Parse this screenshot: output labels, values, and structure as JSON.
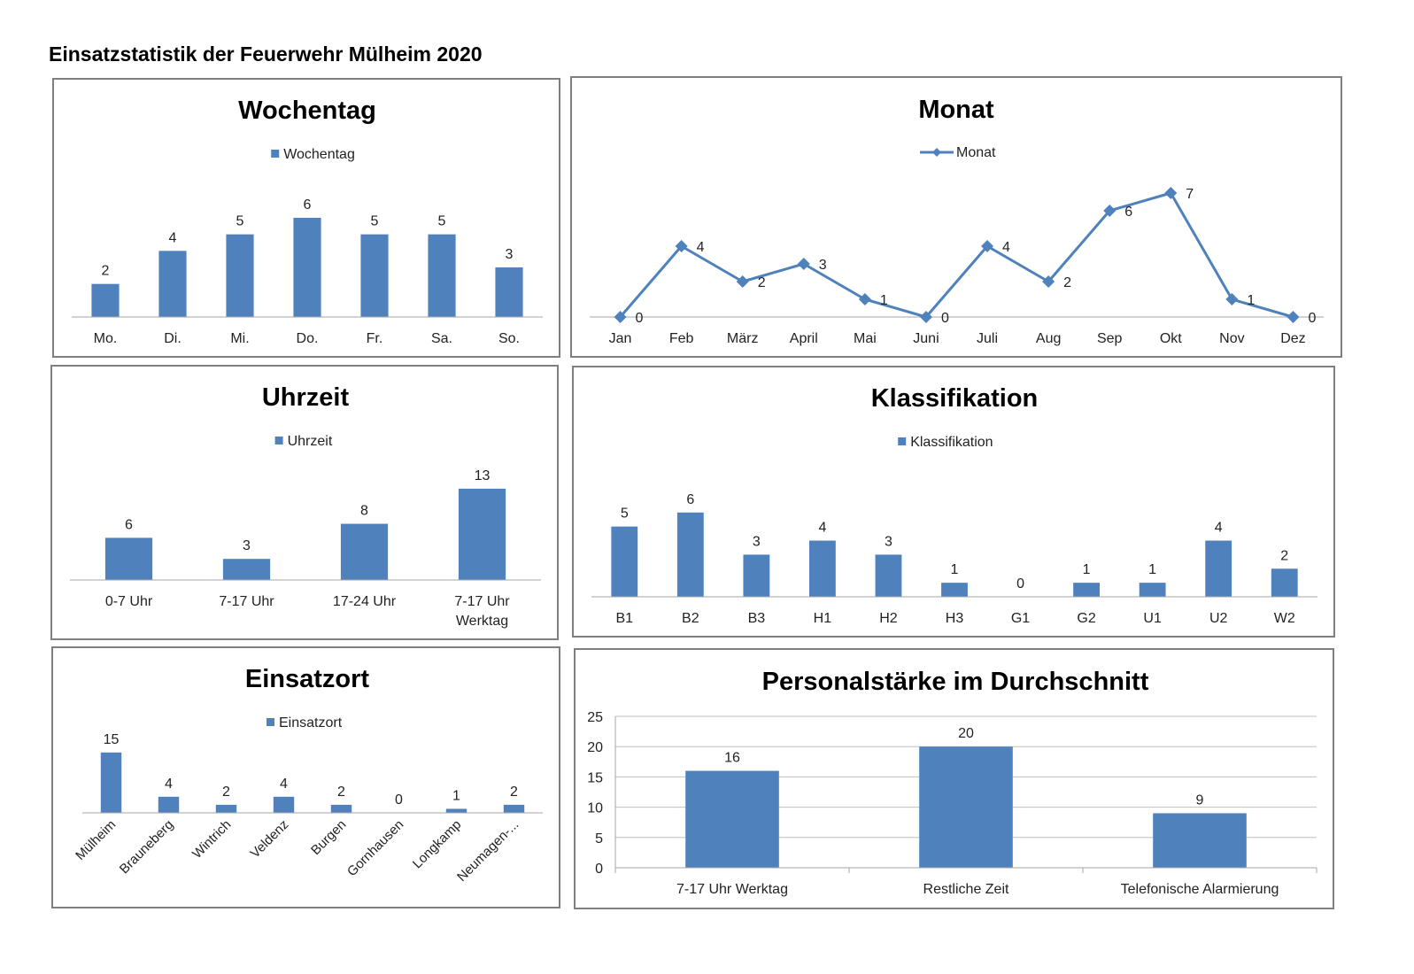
{
  "page_title": "Einsatzstatistik der Feuerwehr Mülheim 2020",
  "colors": {
    "bar": "#4f81bd",
    "axis": "#a6a6a6",
    "border": "#7f7f7f"
  },
  "chart_data": [
    {
      "id": "wochentag",
      "type": "bar",
      "title": "Wochentag",
      "legend": "Wochentag",
      "categories": [
        "Mo.",
        "Di.",
        "Mi.",
        "Do.",
        "Fr.",
        "Sa.",
        "So."
      ],
      "values": [
        2,
        4,
        5,
        6,
        5,
        5,
        3
      ],
      "ylim": [
        0,
        7.5
      ],
      "grid": false,
      "legend_position": "top"
    },
    {
      "id": "monat",
      "type": "line",
      "title": "Monat",
      "legend": "Monat",
      "categories": [
        "Jan",
        "Feb",
        "März",
        "April",
        "Mai",
        "Juni",
        "Juli",
        "Aug",
        "Sep",
        "Okt",
        "Nov",
        "Dez"
      ],
      "values": [
        0,
        4,
        2,
        3,
        1,
        0,
        4,
        2,
        6,
        7,
        1,
        0
      ],
      "ylim": [
        0,
        7.5
      ],
      "grid": false,
      "legend_position": "top"
    },
    {
      "id": "uhrzeit",
      "type": "bar",
      "title": "Uhrzeit",
      "legend": "Uhrzeit",
      "categories": [
        [
          "0-7 Uhr"
        ],
        [
          "7-17 Uhr"
        ],
        [
          "17-24 Uhr"
        ],
        [
          "7-17 Uhr",
          "Werktag"
        ]
      ],
      "values": [
        6,
        3,
        8,
        13
      ],
      "ylim": [
        0,
        14.5
      ],
      "grid": false,
      "legend_position": "top"
    },
    {
      "id": "klassifikation",
      "type": "bar",
      "title": "Klassifikation",
      "legend": "Klassifikation",
      "categories": [
        "B1",
        "B2",
        "B3",
        "H1",
        "H2",
        "H3",
        "G1",
        "G2",
        "U1",
        "U2",
        "W2"
      ],
      "values": [
        5,
        6,
        3,
        4,
        3,
        1,
        0,
        1,
        1,
        4,
        2
      ],
      "ylim": [
        0,
        7.5
      ],
      "grid": false,
      "legend_position": "top"
    },
    {
      "id": "einsatzort",
      "type": "bar",
      "title": "Einsatzort",
      "legend": "Einsatzort",
      "categories": [
        "Mülheim",
        "Brauneberg",
        "Wintrich",
        "Veldenz",
        "Burgen",
        "Gornhausen",
        "Longkamp",
        "Neumagen-..."
      ],
      "values": [
        15,
        4,
        2,
        4,
        2,
        0,
        1,
        2
      ],
      "ylim": [
        0,
        16.5
      ],
      "grid": false,
      "legend_position": "top"
    },
    {
      "id": "personal",
      "type": "bar",
      "title": "Personalstärke im Durchschnitt",
      "categories": [
        "7-17 Uhr Werktag",
        "Restliche Zeit",
        "Telefonische Alarmierung"
      ],
      "values": [
        16,
        20,
        9
      ],
      "ylim": [
        0,
        25
      ],
      "yticks": [
        "0",
        "5",
        "10",
        "15",
        "20",
        "25"
      ],
      "grid": true
    }
  ]
}
